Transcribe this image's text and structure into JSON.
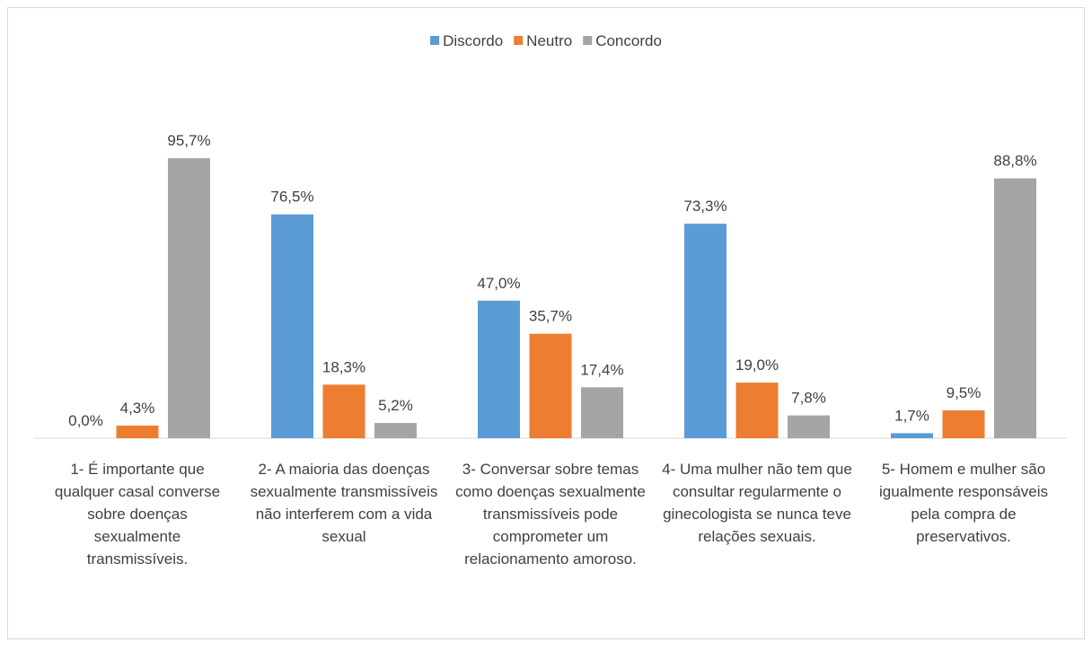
{
  "chart_data": {
    "type": "bar",
    "categories": [
      "1- É importante que qualquer casal converse sobre doenças sexualmente transmissíveis.",
      "2- A maioria das doenças sexualmente transmissíveis não interferem com a vida sexual",
      "3- Conversar sobre temas como doenças sexualmente transmissíveis pode comprometer um relacionamento amoroso.",
      "4- Uma mulher não tem que consultar regularmente o ginecologista se nunca teve relações sexuais.",
      "5- Homem e mulher são igualmente responsáveis pela compra de preservativos."
    ],
    "series": [
      {
        "name": "Discordo",
        "color": "#5b9bd5",
        "values": [
          0.0,
          76.5,
          47.0,
          73.3,
          1.7
        ],
        "value_labels": [
          "0,0%",
          "76,5%",
          "47,0%",
          "73,3%",
          "1,7%"
        ]
      },
      {
        "name": "Neutro",
        "color": "#ed7d31",
        "values": [
          4.3,
          18.3,
          35.7,
          19.0,
          9.5
        ],
        "value_labels": [
          "4,3%",
          "18,3%",
          "35,7%",
          "19,0%",
          "9,5%"
        ]
      },
      {
        "name": "Concordo",
        "color": "#a5a5a5",
        "values": [
          95.7,
          5.2,
          17.4,
          7.8,
          88.8
        ],
        "value_labels": [
          "95,7%",
          "5,2%",
          "17,4%",
          "7,8%",
          "88,8%"
        ]
      }
    ],
    "ylim": [
      0,
      120
    ],
    "legend": "top"
  }
}
